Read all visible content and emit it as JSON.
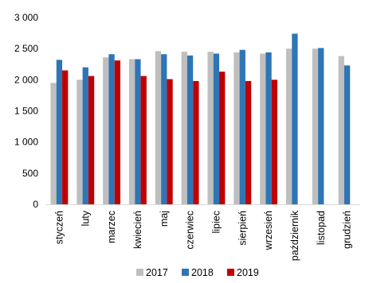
{
  "chart_data": {
    "type": "bar",
    "title": "",
    "xlabel": "",
    "ylabel": "",
    "categories": [
      "styczeń",
      "luty",
      "marzec",
      "kwiecień",
      "maj",
      "czerwiec",
      "lipiec",
      "sierpień",
      "wrzesień",
      "październik",
      "listopad",
      "grudzień"
    ],
    "ylim": [
      0,
      3000
    ],
    "yticks": [
      0,
      500,
      1000,
      1500,
      2000,
      2500,
      3000
    ],
    "ytick_labels": [
      "0",
      "500",
      "1 000",
      "1 500",
      "2 000",
      "2 500",
      "3 000"
    ],
    "grid": false,
    "legend_position": "bottom",
    "series": [
      {
        "name": "2017",
        "color": "#BFBFBF",
        "values": [
          1950,
          2000,
          2360,
          2330,
          2460,
          2450,
          2450,
          2440,
          2420,
          2500,
          2500,
          2380
        ]
      },
      {
        "name": "2018",
        "color": "#2E75B6",
        "values": [
          2320,
          2200,
          2410,
          2330,
          2410,
          2390,
          2420,
          2480,
          2440,
          2740,
          2510,
          2230
        ]
      },
      {
        "name": "2019",
        "color": "#C00000",
        "values": [
          2150,
          2060,
          2310,
          2060,
          2010,
          1980,
          2130,
          1980,
          2000,
          null,
          null,
          null
        ]
      }
    ]
  }
}
